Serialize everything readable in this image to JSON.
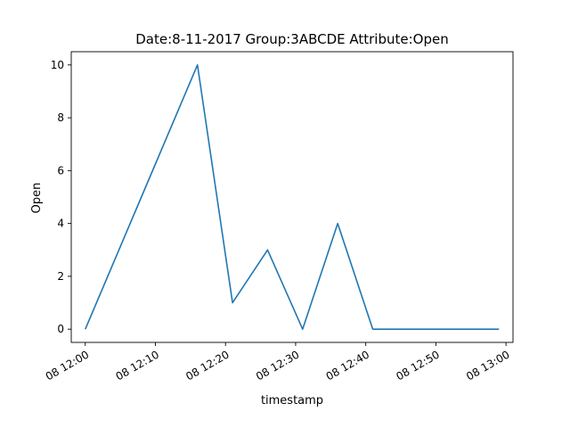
{
  "chart_data": {
    "type": "line",
    "title": "Date:8-11-2017  Group:3ABCDE Attribute:Open",
    "xlabel": "timestamp",
    "ylabel": "Open",
    "x": [
      "12:00",
      "12:08",
      "12:16",
      "12:21",
      "12:26",
      "12:31",
      "12:36",
      "12:41",
      "12:59"
    ],
    "series": [
      {
        "values": [
          0,
          5,
          10,
          1,
          3,
          0,
          4,
          0,
          0
        ],
        "color": "#1f77b4"
      }
    ],
    "x_ticks": [
      "08 12:00",
      "08 12:10",
      "08 12:20",
      "08 12:30",
      "08 12:40",
      "08 12:50",
      "08 13:00"
    ],
    "y_ticks": [
      "0",
      "2",
      "4",
      "6",
      "8",
      "10"
    ],
    "xlim": [
      "11:58",
      "13:01"
    ],
    "ylim": [
      -0.5,
      10.5
    ],
    "grid": false,
    "legend": "none"
  }
}
